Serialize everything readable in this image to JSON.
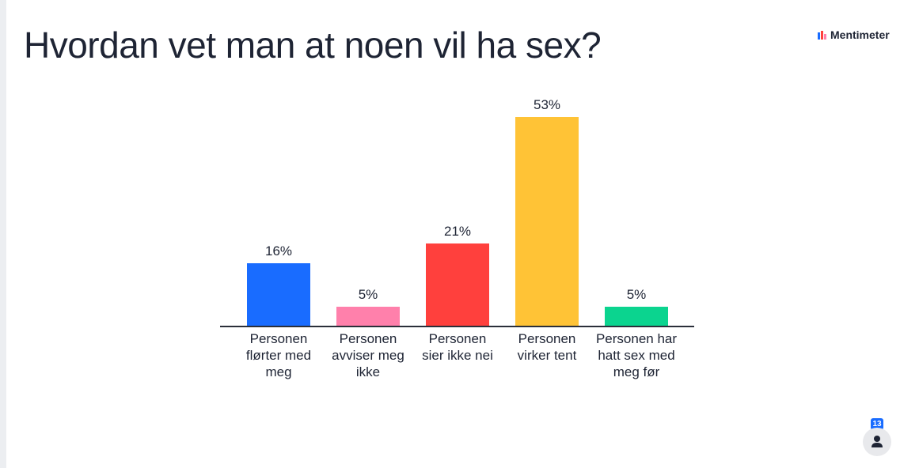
{
  "title": "Hvordan vet man at noen vil ha sex?",
  "brand": "Mentimeter",
  "participant_count": 13,
  "chart_data": {
    "type": "bar",
    "categories": [
      "Personen flørter med meg",
      "Personen avviser meg ikke",
      "Personen sier ikke nei",
      "Personen virker tent",
      "Personen har hatt sex med meg før"
    ],
    "values": [
      16,
      5,
      21,
      53,
      5
    ],
    "value_labels": [
      "16%",
      "5%",
      "21%",
      "53%",
      "5%"
    ],
    "colors": [
      "#196cff",
      "#ff80ab",
      "#ff403d",
      "#ffc336",
      "#0bd48f"
    ]
  }
}
